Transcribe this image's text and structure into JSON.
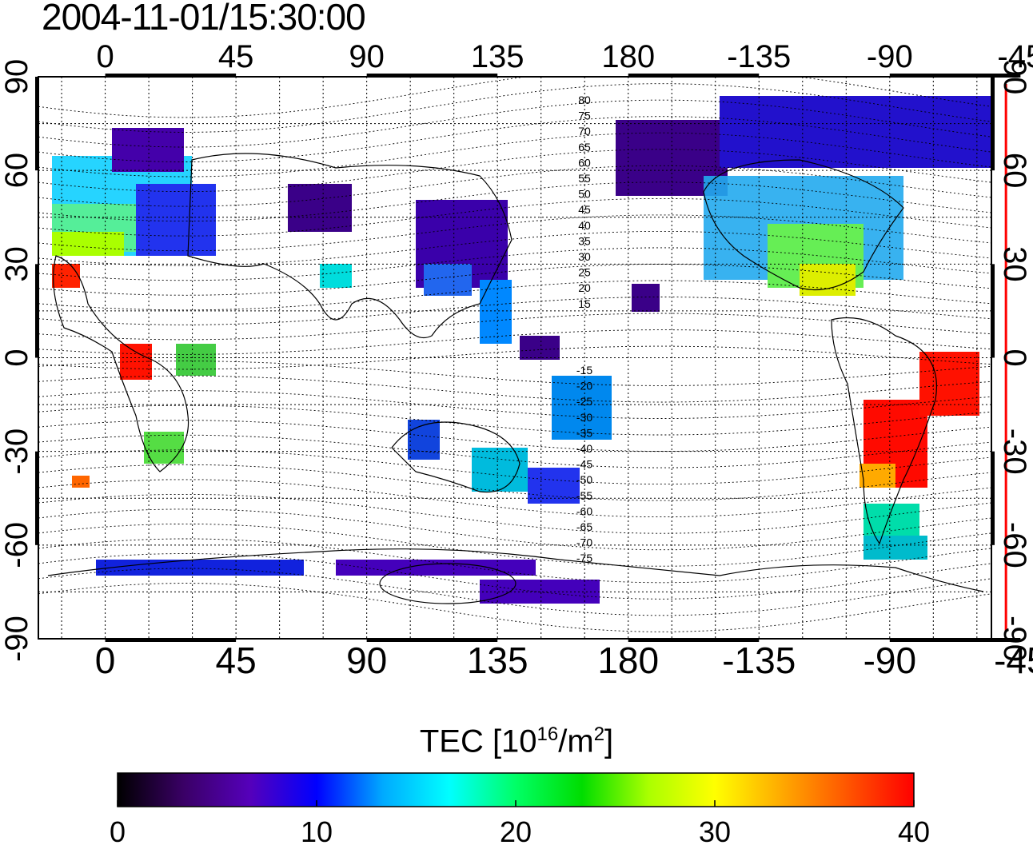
{
  "title": "2004-11-01/15:30:00",
  "map": {
    "lon_ticks": [
      "0",
      "45",
      "90",
      "135",
      "180",
      "-135",
      "-90",
      "-45"
    ],
    "lat_ticks": [
      "90",
      "60",
      "30",
      "0",
      "-30",
      "-60",
      "-90"
    ],
    "lon_range_deg": [
      -23,
      305
    ],
    "lat_range_deg": [
      -90,
      90
    ],
    "grid": "dotted, every 15 degrees",
    "highlight_meridian_lon": -50,
    "highlight_meridian_color": "#ff0000",
    "contour_labels_north": [
      "80",
      "75",
      "70",
      "65",
      "60",
      "55",
      "50",
      "45",
      "40",
      "35",
      "30",
      "25",
      "20",
      "15"
    ],
    "contour_labels_south": [
      "-15",
      "-20",
      "-25",
      "-30",
      "-35",
      "-40",
      "-45",
      "-50",
      "-55",
      "-60",
      "-65",
      "-70",
      "-75"
    ]
  },
  "colorbar": {
    "title_main": "TEC  [10",
    "title_exp": "16",
    "title_unit": "/m",
    "title_unit_exp": "2",
    "title_close": "]",
    "ticks": [
      "0",
      "10",
      "20",
      "30",
      "40"
    ],
    "min": 0,
    "max": 40,
    "colors": [
      "#000000",
      "#3a0066",
      "#5500bb",
      "#0000ff",
      "#00aaff",
      "#00ffff",
      "#00ff66",
      "#00dd00",
      "#aaff00",
      "#ffff00",
      "#ffaa00",
      "#ff5500",
      "#ff0000"
    ]
  }
}
